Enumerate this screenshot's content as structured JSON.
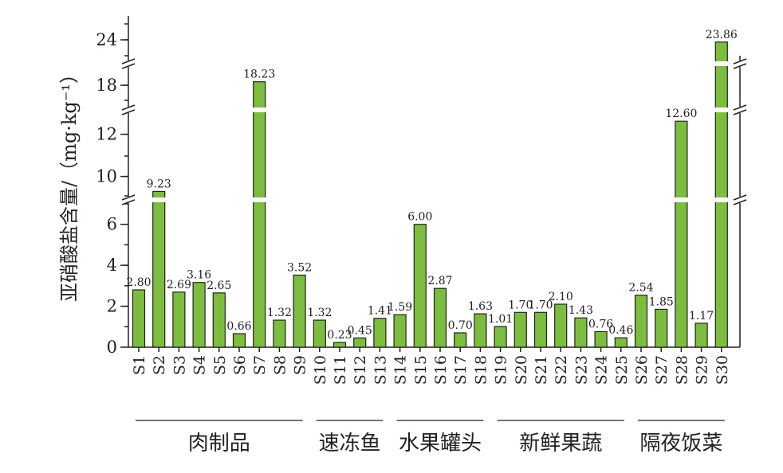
{
  "chart_data": {
    "type": "bar",
    "ylabel": "亚硝酸盐含量/（mg·kg⁻¹）",
    "y_axis_broken": true,
    "y_ticks": [
      0,
      2,
      4,
      6,
      10,
      12,
      18,
      24
    ],
    "bar_color": "#7cbd3f",
    "categories": [
      "S1",
      "S2",
      "S3",
      "S4",
      "S5",
      "S6",
      "S7",
      "S8",
      "S9",
      "S10",
      "S11",
      "S12",
      "S13",
      "S14",
      "S15",
      "S16",
      "S17",
      "S18",
      "S19",
      "S20",
      "S21",
      "S22",
      "S23",
      "S24",
      "S25",
      "S26",
      "S27",
      "S28",
      "S29",
      "S30"
    ],
    "values": [
      2.8,
      9.23,
      2.69,
      3.16,
      2.65,
      0.66,
      18.23,
      1.32,
      3.52,
      1.32,
      0.23,
      0.45,
      1.41,
      1.59,
      6.0,
      2.87,
      0.7,
      1.63,
      1.01,
      1.7,
      1.7,
      2.1,
      1.43,
      0.76,
      0.46,
      2.54,
      1.85,
      12.6,
      1.17,
      23.86
    ],
    "data_labels": [
      "2.80",
      "9.23",
      "2.69",
      "3.16",
      "2.65",
      "0.66",
      "18.23",
      "1.32",
      "3.52",
      "1.32",
      "0.23",
      "0.45",
      "1.41",
      "1.59",
      "6.00",
      "2.87",
      "0.70",
      "1.63",
      "1.01",
      "1.70",
      "1.70",
      "2.10",
      "1.43",
      "0.76",
      "0.46",
      "2.54",
      "1.85",
      "12.60",
      "1.17",
      "23.86"
    ],
    "groups": [
      {
        "label": "肉制品",
        "from": 0,
        "to": 8
      },
      {
        "label": "速冻鱼",
        "from": 9,
        "to": 12
      },
      {
        "label": "水果罐头",
        "from": 13,
        "to": 17
      },
      {
        "label": "新鲜果蔬",
        "from": 18,
        "to": 24
      },
      {
        "label": "隔夜饭菜",
        "from": 25,
        "to": 29
      }
    ]
  }
}
